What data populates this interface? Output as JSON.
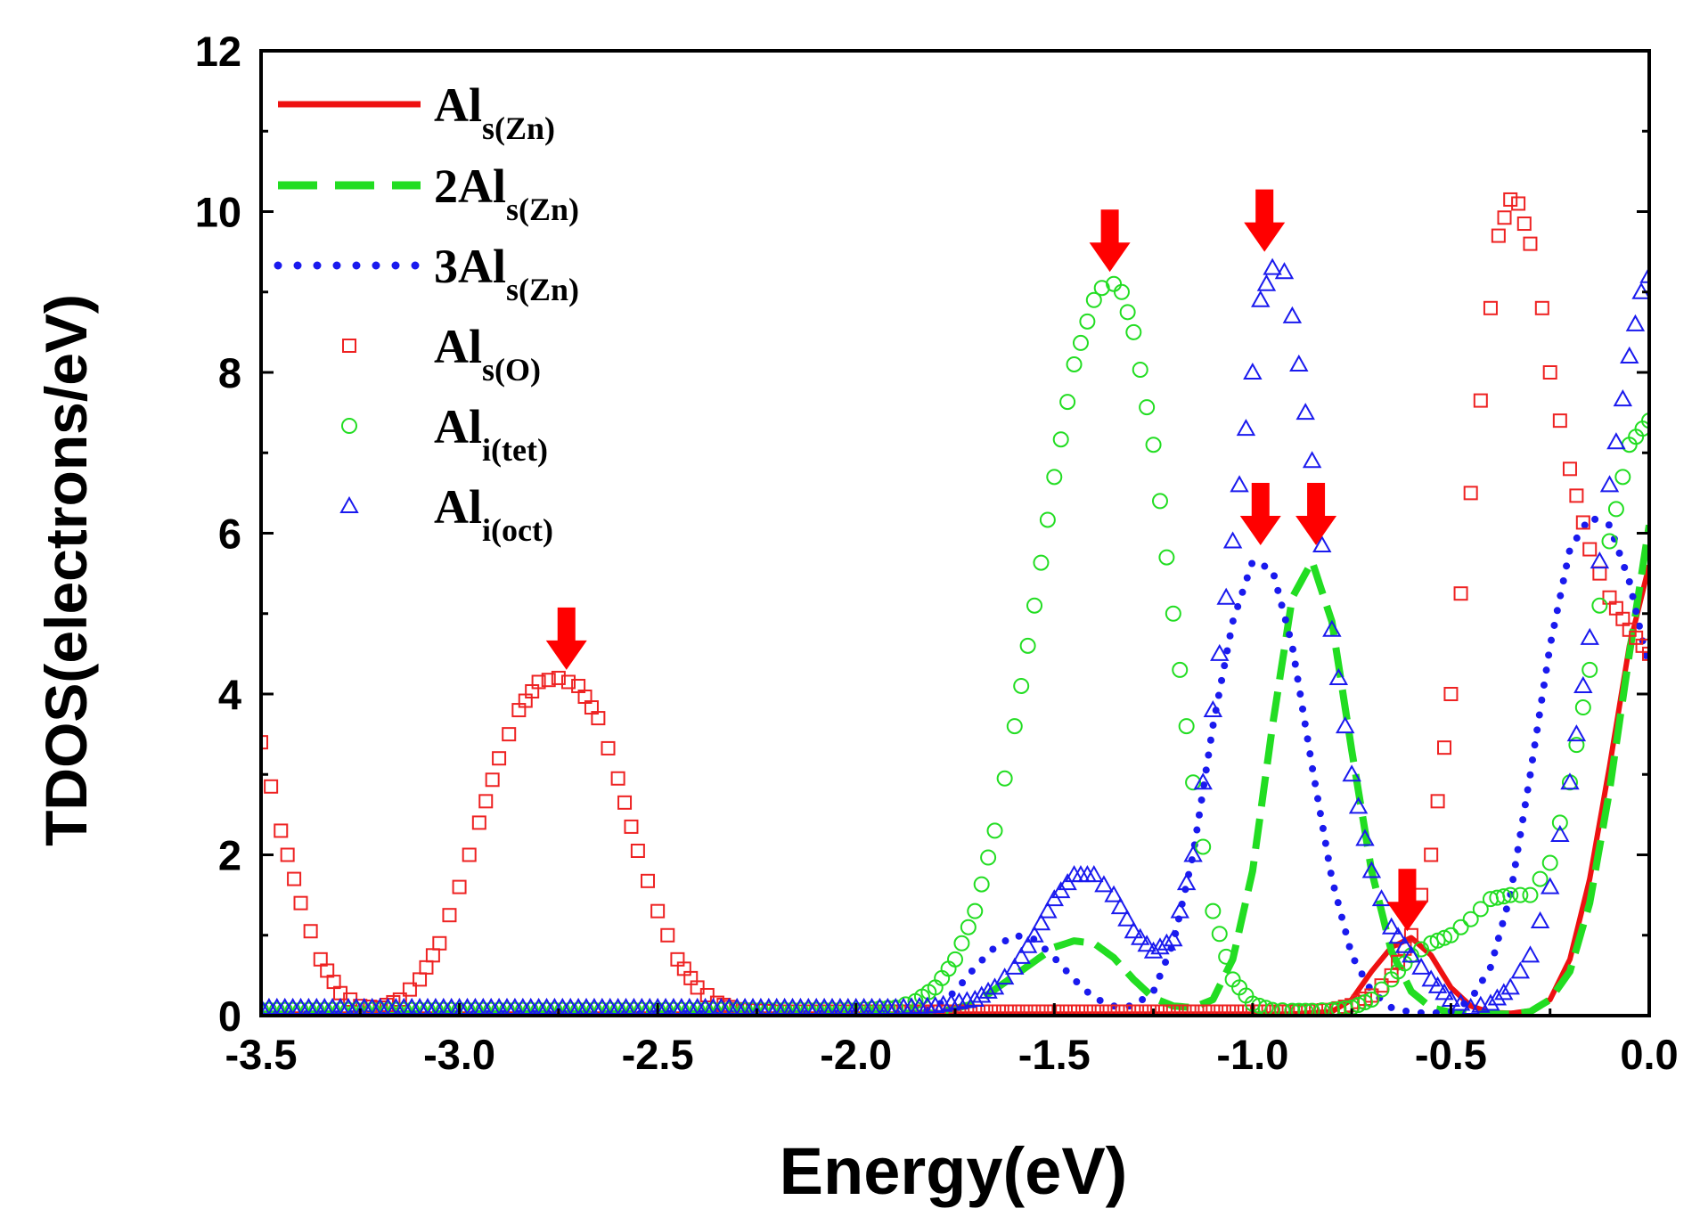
{
  "chart_data": {
    "type": "line",
    "title": "",
    "xlabel": "Energy(eV)",
    "ylabel": "TDOS(electrons/eV)",
    "xlim": [
      -3.5,
      0.0
    ],
    "ylim": [
      0,
      12
    ],
    "xticks": [
      -3.5,
      -3.0,
      -2.5,
      -2.0,
      -1.5,
      -1.0,
      -0.5,
      0.0
    ],
    "xtick_labels": [
      "-3.5",
      "-3.0",
      "-2.5",
      "-2.0",
      "-1.5",
      "-1.0",
      "-0.5",
      "0.0"
    ],
    "yticks": [
      0,
      2,
      4,
      6,
      8,
      10,
      12
    ],
    "ytick_labels": [
      "0",
      "2",
      "4",
      "6",
      "8",
      "10",
      "12"
    ],
    "grid": false,
    "legend_position": "top-left",
    "series": [
      {
        "name": "Al_s(Zn)",
        "label_main": "Al",
        "label_sub": "s(Zn)",
        "style": "solid",
        "color": "#ee1111",
        "x": [
          -3.5,
          -0.9,
          -0.8,
          -0.75,
          -0.7,
          -0.65,
          -0.6,
          -0.55,
          -0.5,
          -0.45,
          -0.4,
          -0.35,
          -0.3,
          -0.25,
          -0.2,
          -0.15,
          -0.1,
          -0.05,
          0.0
        ],
        "y": [
          0.02,
          0.02,
          0.05,
          0.2,
          0.55,
          0.85,
          0.97,
          0.75,
          0.35,
          0.12,
          0.04,
          0.03,
          0.06,
          0.2,
          0.7,
          1.7,
          3.1,
          4.6,
          5.6
        ]
      },
      {
        "name": "2Al_s(Zn)",
        "label_main": "2Al",
        "label_sub": "s(Zn)",
        "style": "dashed",
        "color": "#22dd22",
        "x": [
          -3.5,
          -1.8,
          -1.7,
          -1.6,
          -1.5,
          -1.45,
          -1.4,
          -1.35,
          -1.3,
          -1.25,
          -1.2,
          -1.15,
          -1.1,
          -1.05,
          -1.0,
          -0.95,
          -0.9,
          -0.85,
          -0.8,
          -0.75,
          -0.7,
          -0.65,
          -0.6,
          -0.55,
          -0.5,
          -0.45,
          -0.4,
          -0.35,
          -0.3,
          -0.25,
          -0.2,
          -0.15,
          -0.1,
          -0.05,
          0.0
        ],
        "y": [
          0.02,
          0.03,
          0.15,
          0.5,
          0.85,
          0.93,
          0.9,
          0.72,
          0.45,
          0.22,
          0.12,
          0.1,
          0.2,
          0.7,
          1.8,
          3.6,
          5.2,
          5.65,
          4.9,
          3.3,
          1.8,
          0.8,
          0.3,
          0.1,
          0.04,
          0.02,
          0.02,
          0.02,
          0.05,
          0.2,
          0.55,
          1.4,
          2.8,
          4.5,
          6.1
        ]
      },
      {
        "name": "3Al_s(Zn)",
        "label_main": "3Al",
        "label_sub": "s(Zn)",
        "style": "dotted",
        "color": "#1a1aee",
        "x": [
          -3.5,
          -1.85,
          -1.8,
          -1.75,
          -1.7,
          -1.65,
          -1.6,
          -1.55,
          -1.5,
          -1.45,
          -1.4,
          -1.35,
          -1.3,
          -1.25,
          -1.2,
          -1.15,
          -1.1,
          -1.05,
          -1.0,
          -0.95,
          -0.9,
          -0.85,
          -0.8,
          -0.75,
          -0.7,
          -0.65,
          -0.6,
          -0.55,
          -0.5,
          -0.45,
          -0.4,
          -0.35,
          -0.3,
          -0.25,
          -0.2,
          -0.15,
          -0.1,
          -0.05,
          0.0
        ],
        "y": [
          0.02,
          0.03,
          0.1,
          0.3,
          0.6,
          0.85,
          1.0,
          0.95,
          0.72,
          0.45,
          0.22,
          0.12,
          0.12,
          0.3,
          0.9,
          2.0,
          3.6,
          4.9,
          5.65,
          5.55,
          4.6,
          3.1,
          1.7,
          0.75,
          0.3,
          0.1,
          0.04,
          0.03,
          0.05,
          0.2,
          0.6,
          1.5,
          3.0,
          4.6,
          5.8,
          6.2,
          6.1,
          5.4,
          4.3
        ]
      },
      {
        "name": "Al_s(O)",
        "label_main": "Al",
        "label_sub": "s(O)",
        "style": "marker-square",
        "color": "#ee2222",
        "x": [
          -3.5,
          -3.45,
          -3.4,
          -3.35,
          -3.3,
          -3.25,
          -3.2,
          -3.15,
          -3.1,
          -3.05,
          -3.0,
          -2.95,
          -2.9,
          -2.85,
          -2.8,
          -2.75,
          -2.7,
          -2.65,
          -2.6,
          -2.55,
          -2.5,
          -2.45,
          -2.4,
          -2.35,
          -2.3,
          -2.2,
          -2.0,
          -1.5,
          -1.0,
          -0.9,
          -0.8,
          -0.75,
          -0.7,
          -0.65,
          -0.6,
          -0.55,
          -0.5,
          -0.45,
          -0.4,
          -0.38,
          -0.35,
          -0.33,
          -0.3,
          -0.27,
          -0.25,
          -0.2,
          -0.15,
          -0.1,
          -0.05,
          0.0
        ],
        "y": [
          3.4,
          2.3,
          1.4,
          0.7,
          0.28,
          0.12,
          0.1,
          0.2,
          0.45,
          0.9,
          1.6,
          2.4,
          3.2,
          3.8,
          4.15,
          4.2,
          4.1,
          3.7,
          2.95,
          2.05,
          1.3,
          0.7,
          0.35,
          0.16,
          0.08,
          0.05,
          0.05,
          0.05,
          0.05,
          0.05,
          0.07,
          0.13,
          0.25,
          0.5,
          1.0,
          2.0,
          4.0,
          6.5,
          8.8,
          9.7,
          10.15,
          10.1,
          9.6,
          8.8,
          8.0,
          6.8,
          5.8,
          5.2,
          4.8,
          4.5
        ]
      },
      {
        "name": "Al_i(tet)",
        "label_main": "Al",
        "label_sub": "i(tet)",
        "style": "marker-circle",
        "color": "#22dd22",
        "x": [
          -3.5,
          -2.0,
          -1.9,
          -1.85,
          -1.8,
          -1.75,
          -1.7,
          -1.65,
          -1.6,
          -1.55,
          -1.5,
          -1.45,
          -1.4,
          -1.38,
          -1.35,
          -1.33,
          -1.3,
          -1.25,
          -1.2,
          -1.15,
          -1.1,
          -1.05,
          -1.0,
          -0.95,
          -0.9,
          -0.85,
          -0.8,
          -0.75,
          -0.7,
          -0.65,
          -0.6,
          -0.55,
          -0.5,
          -0.45,
          -0.4,
          -0.35,
          -0.3,
          -0.25,
          -0.2,
          -0.15,
          -0.1,
          -0.05,
          0.0
        ],
        "y": [
          0.07,
          0.07,
          0.1,
          0.18,
          0.35,
          0.7,
          1.3,
          2.3,
          3.6,
          5.1,
          6.7,
          8.1,
          8.9,
          9.05,
          9.1,
          9.0,
          8.5,
          7.1,
          5.0,
          2.9,
          1.3,
          0.45,
          0.15,
          0.07,
          0.06,
          0.06,
          0.07,
          0.1,
          0.2,
          0.45,
          0.75,
          0.9,
          1.0,
          1.2,
          1.45,
          1.5,
          1.5,
          1.9,
          2.9,
          4.3,
          5.9,
          7.1,
          7.4
        ]
      },
      {
        "name": "Al_i(oct)",
        "label_main": "Al",
        "label_sub": "i(oct)",
        "style": "marker-triangle",
        "color": "#1a1aee",
        "x": [
          -3.5,
          -1.9,
          -1.8,
          -1.7,
          -1.65,
          -1.6,
          -1.55,
          -1.5,
          -1.45,
          -1.4,
          -1.35,
          -1.3,
          -1.25,
          -1.2,
          -1.15,
          -1.1,
          -1.05,
          -1.0,
          -0.98,
          -0.95,
          -0.92,
          -0.9,
          -0.85,
          -0.8,
          -0.75,
          -0.7,
          -0.65,
          -0.6,
          -0.55,
          -0.5,
          -0.45,
          -0.4,
          -0.35,
          -0.3,
          -0.25,
          -0.2,
          -0.15,
          -0.1,
          -0.05,
          -0.02,
          0.0
        ],
        "y": [
          0.1,
          0.1,
          0.12,
          0.2,
          0.35,
          0.6,
          1.0,
          1.45,
          1.75,
          1.75,
          1.5,
          1.05,
          0.8,
          0.95,
          2.0,
          3.8,
          5.9,
          8.0,
          8.9,
          9.3,
          9.25,
          8.7,
          6.9,
          4.8,
          3.0,
          1.8,
          1.1,
          0.75,
          0.45,
          0.2,
          0.1,
          0.15,
          0.35,
          0.75,
          1.6,
          2.9,
          4.7,
          6.6,
          8.2,
          9.0,
          9.2
        ]
      }
    ],
    "annotations": [
      {
        "type": "arrow",
        "x": -2.73,
        "y": 4.3
      },
      {
        "type": "arrow",
        "x": -1.36,
        "y": 9.25
      },
      {
        "type": "arrow",
        "x": -0.97,
        "y": 9.5
      },
      {
        "type": "arrow",
        "x": -0.98,
        "y": 5.85
      },
      {
        "type": "arrow",
        "x": -0.84,
        "y": 5.85
      },
      {
        "type": "arrow",
        "x": -0.61,
        "y": 1.05
      }
    ]
  }
}
